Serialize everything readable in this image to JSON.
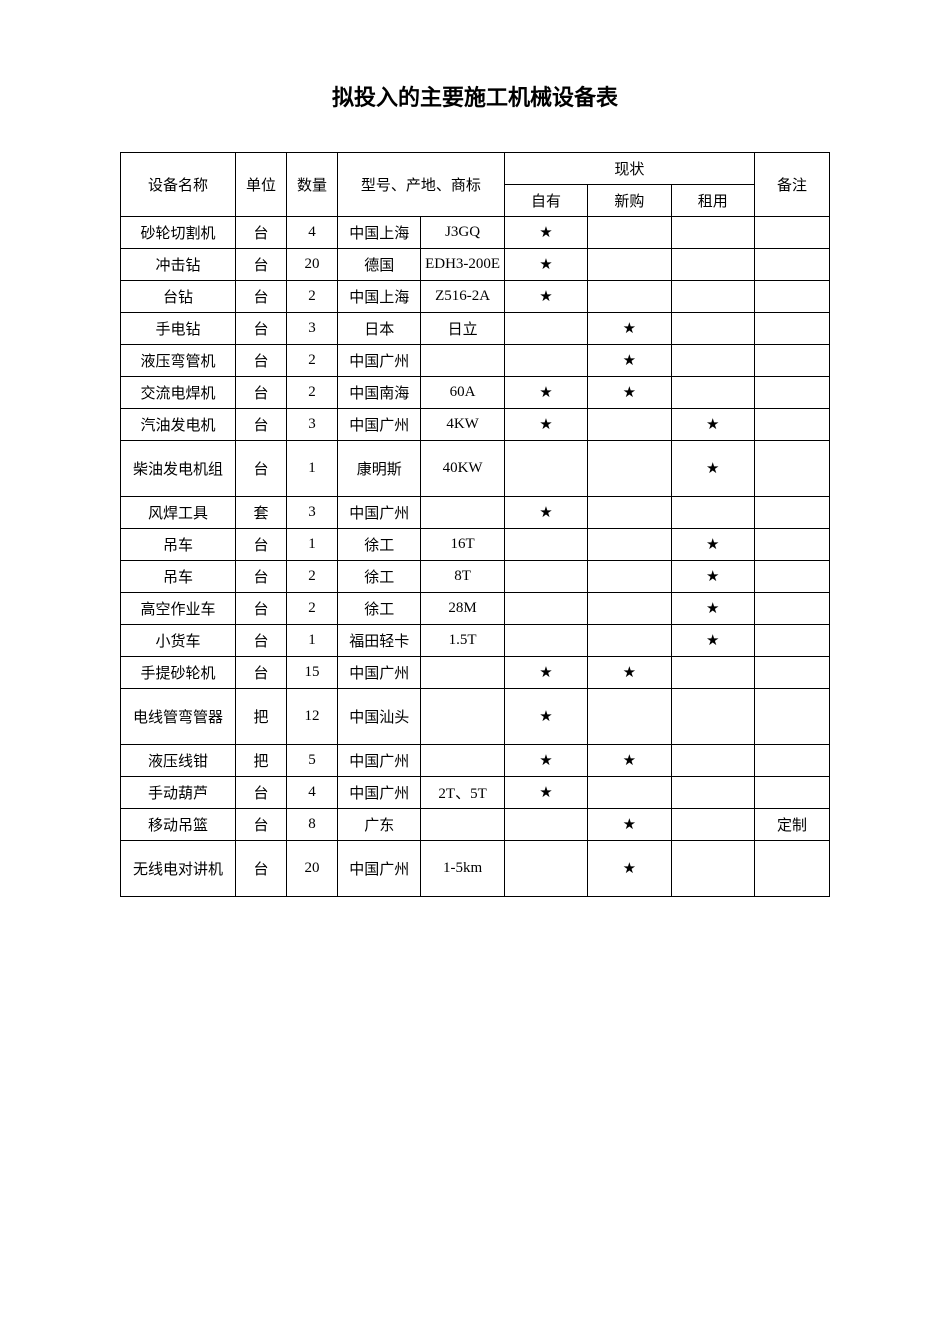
{
  "title": "拟投入的主要施工机械设备表",
  "headers": {
    "name": "设备名称",
    "unit": "单位",
    "qty": "数量",
    "model": "型号、产地、商标",
    "status": "现状",
    "own": "自有",
    "new": "新购",
    "rent": "租用",
    "remark": "备注"
  },
  "star": "★",
  "rows": [
    {
      "name": "砂轮切割机",
      "unit": "台",
      "qty": "4",
      "origin": "中国上海",
      "model": "J3GQ",
      "own": "★",
      "new": "",
      "rent": "",
      "remark": ""
    },
    {
      "name": "冲击钻",
      "unit": "台",
      "qty": "20",
      "origin": "德国",
      "model": "EDH3-200E",
      "own": "★",
      "new": "",
      "rent": "",
      "remark": ""
    },
    {
      "name": "台钻",
      "unit": "台",
      "qty": "2",
      "origin": "中国上海",
      "model": "Z516-2A",
      "own": "★",
      "new": "",
      "rent": "",
      "remark": ""
    },
    {
      "name": "手电钻",
      "unit": "台",
      "qty": "3",
      "origin": "日本",
      "model": "日立",
      "own": "",
      "new": "★",
      "rent": "",
      "remark": ""
    },
    {
      "name": "液压弯管机",
      "unit": "台",
      "qty": "2",
      "origin": "中国广州",
      "model": "",
      "own": "",
      "new": "★",
      "rent": "",
      "remark": ""
    },
    {
      "name": "交流电焊机",
      "unit": "台",
      "qty": "2",
      "origin": "中国南海",
      "model": "60A",
      "own": "★",
      "new": "★",
      "rent": "",
      "remark": ""
    },
    {
      "name": "汽油发电机",
      "unit": "台",
      "qty": "3",
      "origin": "中国广州",
      "model": "4KW",
      "own": "★",
      "new": "",
      "rent": "★",
      "remark": ""
    },
    {
      "name": "柴油发电机组",
      "unit": "台",
      "qty": "1",
      "origin": "康明斯",
      "model": "40KW",
      "own": "",
      "new": "",
      "rent": "★",
      "remark": "",
      "tall": true
    },
    {
      "name": "风焊工具",
      "unit": "套",
      "qty": "3",
      "origin": "中国广州",
      "model": "",
      "own": "★",
      "new": "",
      "rent": "",
      "remark": ""
    },
    {
      "name": "吊车",
      "unit": "台",
      "qty": "1",
      "origin": "徐工",
      "model": "16T",
      "own": "",
      "new": "",
      "rent": "★",
      "remark": ""
    },
    {
      "name": "吊车",
      "unit": "台",
      "qty": "2",
      "origin": "徐工",
      "model": "8T",
      "own": "",
      "new": "",
      "rent": "★",
      "remark": ""
    },
    {
      "name": "高空作业车",
      "unit": "台",
      "qty": "2",
      "origin": "徐工",
      "model": "28M",
      "own": "",
      "new": "",
      "rent": "★",
      "remark": ""
    },
    {
      "name": "小货车",
      "unit": "台",
      "qty": "1",
      "origin": "福田轻卡",
      "model": "1.5T",
      "own": "",
      "new": "",
      "rent": "★",
      "remark": ""
    },
    {
      "name": "手提砂轮机",
      "unit": "台",
      "qty": "15",
      "origin": "中国广州",
      "model": "",
      "own": "★",
      "new": "★",
      "rent": "",
      "remark": ""
    },
    {
      "name": "电线管弯管器",
      "unit": "把",
      "qty": "12",
      "origin": "中国汕头",
      "model": "",
      "own": "★",
      "new": "",
      "rent": "",
      "remark": "",
      "tall": true
    },
    {
      "name": "液压线钳",
      "unit": "把",
      "qty": "5",
      "origin": "中国广州",
      "model": "",
      "own": "★",
      "new": "★",
      "rent": "",
      "remark": ""
    },
    {
      "name": "手动葫芦",
      "unit": "台",
      "qty": "4",
      "origin": "中国广州",
      "model": "2T、5T",
      "own": "★",
      "new": "",
      "rent": "",
      "remark": ""
    },
    {
      "name": "移动吊篮",
      "unit": "台",
      "qty": "8",
      "origin": "广东",
      "model": "",
      "own": "",
      "new": "★",
      "rent": "",
      "remark": "定制"
    },
    {
      "name": "无线电对讲机",
      "unit": "台",
      "qty": "20",
      "origin": "中国广州",
      "model": "1-5km",
      "own": "",
      "new": "★",
      "rent": "",
      "remark": "",
      "tall": true
    }
  ]
}
